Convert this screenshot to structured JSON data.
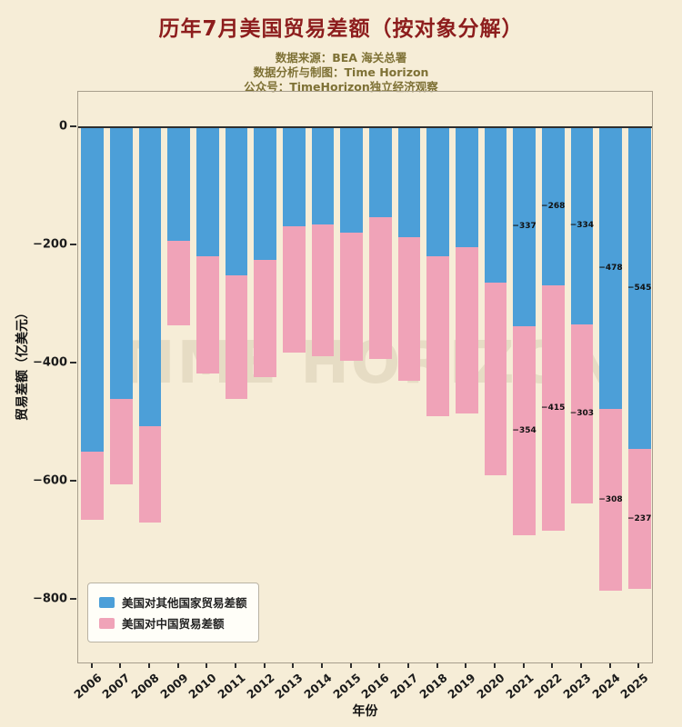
{
  "header": {
    "title": "历年7月美国贸易差额（按对象分解）",
    "subtitles": [
      "数据来源：BEA 海关总署",
      "数据分析与制图：Time Horizon",
      "公众号：TimeHorizon独立经济观察"
    ]
  },
  "watermark": "TIME HORIZON",
  "axes": {
    "y_label": "贸易差额（亿美元）",
    "x_label": "年份",
    "y_ticks": [
      0,
      -200,
      -400,
      -600,
      -800
    ]
  },
  "chart_data": {
    "type": "bar",
    "stacked": true,
    "title": "历年7月美国贸易差额（按对象分解）",
    "xlabel": "年份",
    "ylabel": "贸易差额（亿美元）",
    "ylim": [
      60,
      -910
    ],
    "grid": false,
    "legend_position": "lower left",
    "categories": [
      "2006",
      "2007",
      "2008",
      "2009",
      "2010",
      "2011",
      "2012",
      "2013",
      "2014",
      "2015",
      "2016",
      "2017",
      "2018",
      "2019",
      "2020",
      "2021",
      "2022",
      "2023",
      "2024",
      "2025"
    ],
    "series": [
      {
        "name": "美国对其他国家贸易差额",
        "color": "#4C9FD8",
        "values": [
          -550,
          -460,
          -506,
          -193,
          -219,
          -251,
          -225,
          -168,
          -165,
          -178,
          -153,
          -187,
          -218,
          -204,
          -263,
          -337,
          -268,
          -334,
          -478,
          -545
        ]
      },
      {
        "name": "美国对中国贸易差额",
        "color": "#F0A3B8",
        "values": [
          -115,
          -145,
          -164,
          -143,
          -199,
          -209,
          -198,
          -214,
          -223,
          -218,
          -240,
          -243,
          -271,
          -281,
          -326,
          -354,
          -415,
          -303,
          -308,
          -237
        ]
      }
    ],
    "labeled_categories": [
      "2021",
      "2022",
      "2023",
      "2024",
      "2025"
    ]
  }
}
